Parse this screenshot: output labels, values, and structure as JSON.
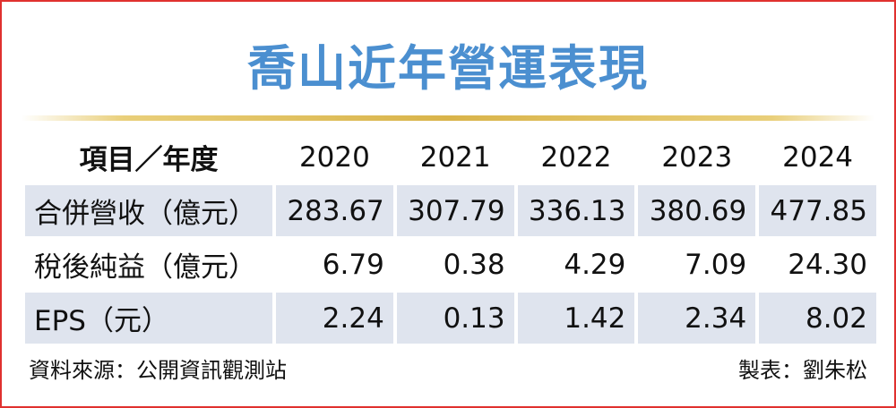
{
  "title": "喬山近年營運表現",
  "table": {
    "header": [
      "項目／年度",
      "2020",
      "2021",
      "2022",
      "2023",
      "2024"
    ],
    "rows": [
      [
        "合併營收（億元）",
        "283.67",
        "307.79",
        "336.13",
        "380.69",
        "477.85"
      ],
      [
        "稅後純益（億元）",
        "6.79",
        "0.38",
        "4.29",
        "7.09",
        "24.30"
      ],
      [
        "EPS（元）",
        "2.24",
        "0.13",
        "1.42",
        "2.34",
        "8.02"
      ]
    ]
  },
  "footer": {
    "source": "資料來源：公開資訊觀測站",
    "credit": "製表：劉朱松"
  }
}
